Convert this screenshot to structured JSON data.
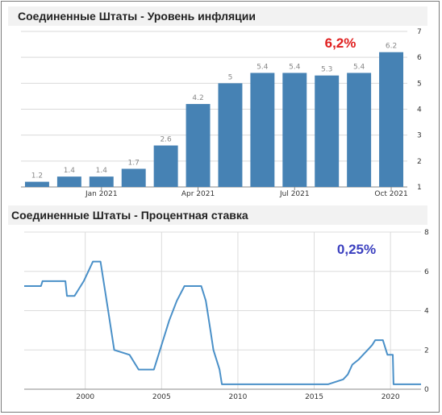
{
  "chart_data": [
    {
      "type": "bar",
      "title": "Соединенные Штаты - Уровень инфляции",
      "annotation": "6,2%",
      "annotation_color": "#e02020",
      "bar_color": "#4682b4",
      "categories": [
        "2020-11",
        "2020-12",
        "2021-01",
        "2021-02",
        "2021-03",
        "2021-04",
        "2021-05",
        "2021-06",
        "2021-07",
        "2021-08",
        "2021-09",
        "2021-10"
      ],
      "values": [
        1.2,
        1.4,
        1.4,
        1.7,
        2.6,
        4.2,
        5,
        5.4,
        5.4,
        5.3,
        5.4,
        6.2
      ],
      "data_labels": [
        "1.2",
        "1.4",
        "1.4",
        "1.7",
        "2.6",
        "4.2",
        "5",
        "5.4",
        "5.4",
        "5.3",
        "5.4",
        "6.2"
      ],
      "x_tick_labels": [
        {
          "label": "Jan 2021",
          "category": "2021-01"
        },
        {
          "label": "Apr 2021",
          "category": "2021-04"
        },
        {
          "label": "Jul 2021",
          "category": "2021-07"
        },
        {
          "label": "Oct 2021",
          "category": "2021-10"
        }
      ],
      "ylim": [
        1,
        7
      ],
      "y_ticks": [
        1,
        2,
        3,
        4,
        5,
        6,
        7
      ],
      "y_axis_position": "right",
      "grid": "horizontal"
    },
    {
      "type": "line",
      "title": "Соединенные Штаты - Процентная ставка",
      "annotation": "0,25%",
      "annotation_color": "#3a3fbf",
      "line_color": "#4a90c8",
      "xlim": [
        1996,
        2022
      ],
      "ylim": [
        0,
        8
      ],
      "x_ticks": [
        2000,
        2005,
        2010,
        2015,
        2020
      ],
      "y_ticks": [
        0,
        2,
        4,
        6,
        8
      ],
      "y_axis_position": "right",
      "grid": "both",
      "x": [
        1996.0,
        1997.1,
        1997.2,
        1998.7,
        1998.8,
        1999.3,
        1999.5,
        1999.9,
        2000.2,
        2000.5,
        2001.0,
        2001.3,
        2001.5,
        2001.9,
        2002.9,
        2003.5,
        2004.5,
        2005.0,
        2005.5,
        2006.0,
        2006.5,
        2007.6,
        2007.9,
        2008.2,
        2008.4,
        2008.8,
        2008.95,
        2015.9,
        2016.9,
        2017.2,
        2017.5,
        2017.9,
        2018.2,
        2018.5,
        2018.8,
        2019.0,
        2019.5,
        2019.7,
        2019.8,
        2020.15,
        2020.2,
        2022.0
      ],
      "y": [
        5.25,
        5.25,
        5.5,
        5.5,
        4.75,
        4.75,
        5.0,
        5.5,
        6.0,
        6.5,
        6.5,
        5.0,
        4.0,
        2.0,
        1.75,
        1.0,
        1.0,
        2.25,
        3.5,
        4.5,
        5.25,
        5.25,
        4.5,
        3.0,
        2.0,
        1.0,
        0.25,
        0.25,
        0.5,
        0.75,
        1.25,
        1.5,
        1.75,
        2.0,
        2.25,
        2.5,
        2.5,
        2.0,
        1.75,
        1.75,
        0.25,
        0.25
      ]
    }
  ]
}
